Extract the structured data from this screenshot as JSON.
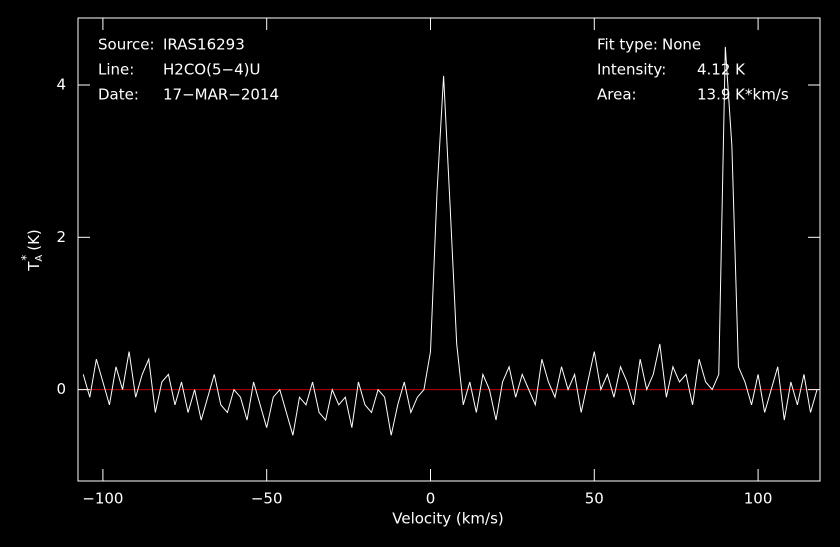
{
  "chart_data": {
    "type": "line",
    "x_label": "Velocity (km/s)",
    "y_label": {
      "base": "T",
      "sub": "A",
      "sup": "*",
      "unit": "(K)"
    },
    "info_left": [
      {
        "label": "Source:",
        "value": "IRAS16293"
      },
      {
        "label": "Line:",
        "value": "H2CO(5−4)U"
      },
      {
        "label": "Date:",
        "value": "17−MAR−2014"
      }
    ],
    "info_right": [
      {
        "label": "Fit type:",
        "value": "None"
      },
      {
        "label": "Intensity:",
        "value": "4.12 K"
      },
      {
        "label": "Area:",
        "value": "13.9 K*km/s"
      }
    ],
    "xlim": [
      -107.6,
      118.9
    ],
    "ylim": [
      -1.2,
      4.88
    ],
    "xticks": [
      {
        "value": -100,
        "label": "−100"
      },
      {
        "value": -50,
        "label": "−50"
      },
      0,
      50,
      100
    ],
    "yticks": [
      0,
      2,
      4
    ],
    "baseline": {
      "value": 0,
      "color": "#c00000"
    },
    "x": [
      -106,
      -104,
      -102,
      -100,
      -98,
      -96,
      -94,
      -92,
      -90,
      -88,
      -86,
      -84,
      -82,
      -80,
      -78,
      -76,
      -74,
      -72,
      -70,
      -68,
      -66,
      -64,
      -62,
      -60,
      -58,
      -56,
      -54,
      -52,
      -50,
      -48,
      -46,
      -44,
      -42,
      -40,
      -38,
      -36,
      -34,
      -32,
      -30,
      -28,
      -26,
      -24,
      -22,
      -20,
      -18,
      -16,
      -14,
      -12,
      -10,
      -8,
      -6,
      -4,
      -2,
      0,
      2,
      4,
      6,
      8,
      10,
      12,
      14,
      16,
      18,
      20,
      22,
      24,
      26,
      28,
      30,
      32,
      34,
      36,
      38,
      40,
      42,
      44,
      46,
      48,
      50,
      52,
      54,
      56,
      58,
      60,
      62,
      64,
      66,
      68,
      70,
      72,
      74,
      76,
      78,
      80,
      82,
      84,
      86,
      88,
      90,
      92,
      94,
      96,
      98,
      100,
      102,
      104,
      106,
      108,
      110,
      112,
      114,
      116,
      118
    ],
    "series": [
      {
        "name": "spectrum",
        "color": "#ffffff",
        "values": [
          0.2,
          -0.1,
          0.4,
          0.1,
          -0.2,
          0.3,
          0.0,
          0.5,
          -0.1,
          0.2,
          0.4,
          -0.3,
          0.1,
          0.2,
          -0.2,
          0.1,
          -0.3,
          0.0,
          -0.4,
          -0.1,
          0.2,
          -0.2,
          -0.3,
          0.0,
          -0.1,
          -0.4,
          0.1,
          -0.2,
          -0.5,
          -0.1,
          0.0,
          -0.3,
          -0.6,
          -0.1,
          -0.2,
          0.1,
          -0.3,
          -0.4,
          0.0,
          -0.2,
          -0.1,
          -0.5,
          0.1,
          -0.2,
          -0.3,
          0.0,
          -0.1,
          -0.6,
          -0.2,
          0.1,
          -0.3,
          -0.1,
          0.0,
          0.5,
          2.6,
          4.12,
          2.4,
          0.6,
          -0.2,
          0.1,
          -0.3,
          0.2,
          0.0,
          -0.4,
          0.1,
          0.3,
          -0.1,
          0.2,
          0.0,
          -0.2,
          0.4,
          0.1,
          -0.1,
          0.3,
          0.0,
          0.2,
          -0.3,
          0.1,
          0.5,
          0.0,
          0.2,
          -0.1,
          0.3,
          0.1,
          -0.2,
          0.4,
          0.0,
          0.2,
          0.6,
          -0.1,
          0.3,
          0.1,
          0.2,
          -0.2,
          0.4,
          0.1,
          0.0,
          0.2,
          4.5,
          3.2,
          0.3,
          0.1,
          -0.2,
          0.2,
          -0.3,
          0.0,
          0.3,
          -0.4,
          0.1,
          -0.2,
          0.2,
          -0.3,
          0.0
        ]
      }
    ]
  }
}
